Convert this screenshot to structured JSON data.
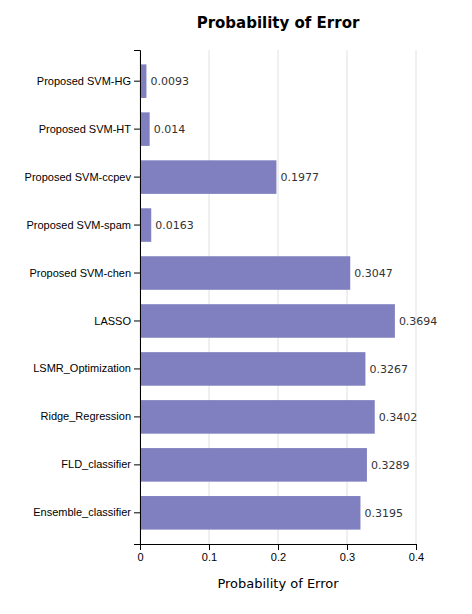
{
  "chart_data": {
    "type": "bar",
    "orientation": "horizontal",
    "title": "Probability of Error",
    "xlabel": "Probability of Error",
    "categories": [
      "Ensemble_classifier",
      "FLD_classifier",
      "Ridge_Regression",
      "LSMR_Optimization",
      "LASSO",
      "Proposed SVM-chen",
      "Proposed SVM-spam",
      "Proposed SVM-ccpev",
      "Proposed SVM-HT",
      "Proposed SVM-HG"
    ],
    "values": [
      0.3195,
      0.3289,
      0.3402,
      0.3267,
      0.3694,
      0.3047,
      0.0163,
      0.1977,
      0.014,
      0.0093
    ],
    "color": "#8080C0",
    "xlim": [
      0,
      0.4
    ],
    "xticks": [
      0,
      0.1,
      0.2,
      0.3,
      0.4
    ],
    "grid": true,
    "data_labels": true
  }
}
